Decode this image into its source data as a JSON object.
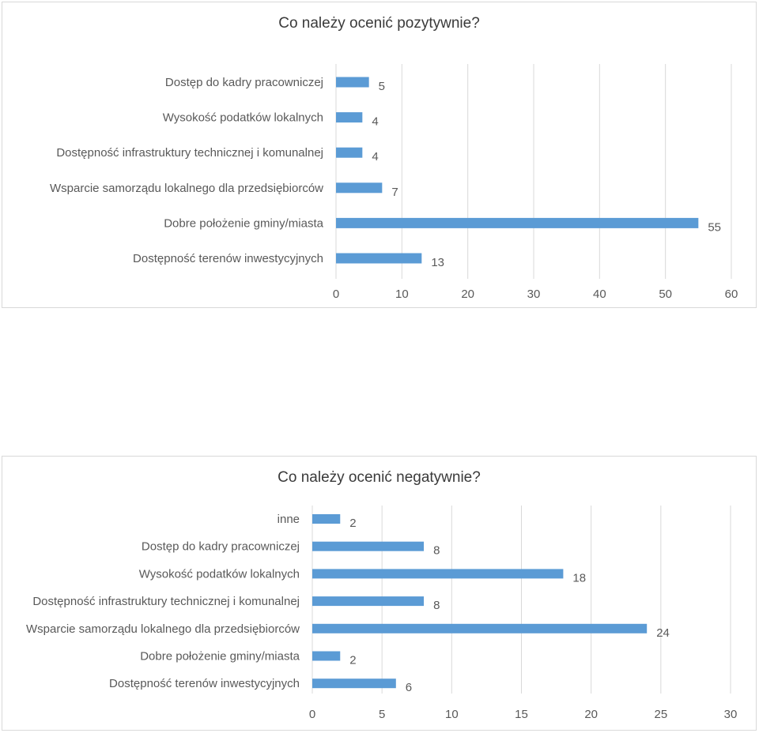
{
  "chart_data": [
    {
      "type": "bar",
      "orientation": "horizontal",
      "title": "Co należy ocenić pozytywnie?",
      "categories": [
        "Dostęp do kadry pracowniczej",
        "Wysokość podatków lokalnych",
        "Dostępność infrastruktury technicznej i komunalnej",
        "Wsparcie samorządu lokalnego dla przedsiębiorców",
        "Dobre położenie gminy/miasta",
        "Dostępność terenów inwestycyjnych"
      ],
      "values": [
        5,
        4,
        4,
        7,
        55,
        13
      ],
      "xlim": [
        0,
        60
      ],
      "xticks": [
        0,
        10,
        20,
        30,
        40,
        50,
        60
      ],
      "grid": "vertical",
      "data_labels": true,
      "bar_color": "#5b9bd5"
    },
    {
      "type": "bar",
      "orientation": "horizontal",
      "title": "Co należy ocenić negatywnie?",
      "categories": [
        "inne",
        "Dostęp do kadry pracowniczej",
        "Wysokość podatków lokalnych",
        "Dostępność infrastruktury technicznej i komunalnej",
        "Wsparcie samorządu lokalnego dla przedsiębiorców",
        "Dobre położenie gminy/miasta",
        "Dostępność terenów inwestycyjnych"
      ],
      "values": [
        2,
        8,
        18,
        8,
        24,
        2,
        6
      ],
      "xlim": [
        0,
        30
      ],
      "xticks": [
        0,
        5,
        10,
        15,
        20,
        25,
        30
      ],
      "grid": "vertical",
      "data_labels": true,
      "bar_color": "#5b9bd5"
    }
  ]
}
